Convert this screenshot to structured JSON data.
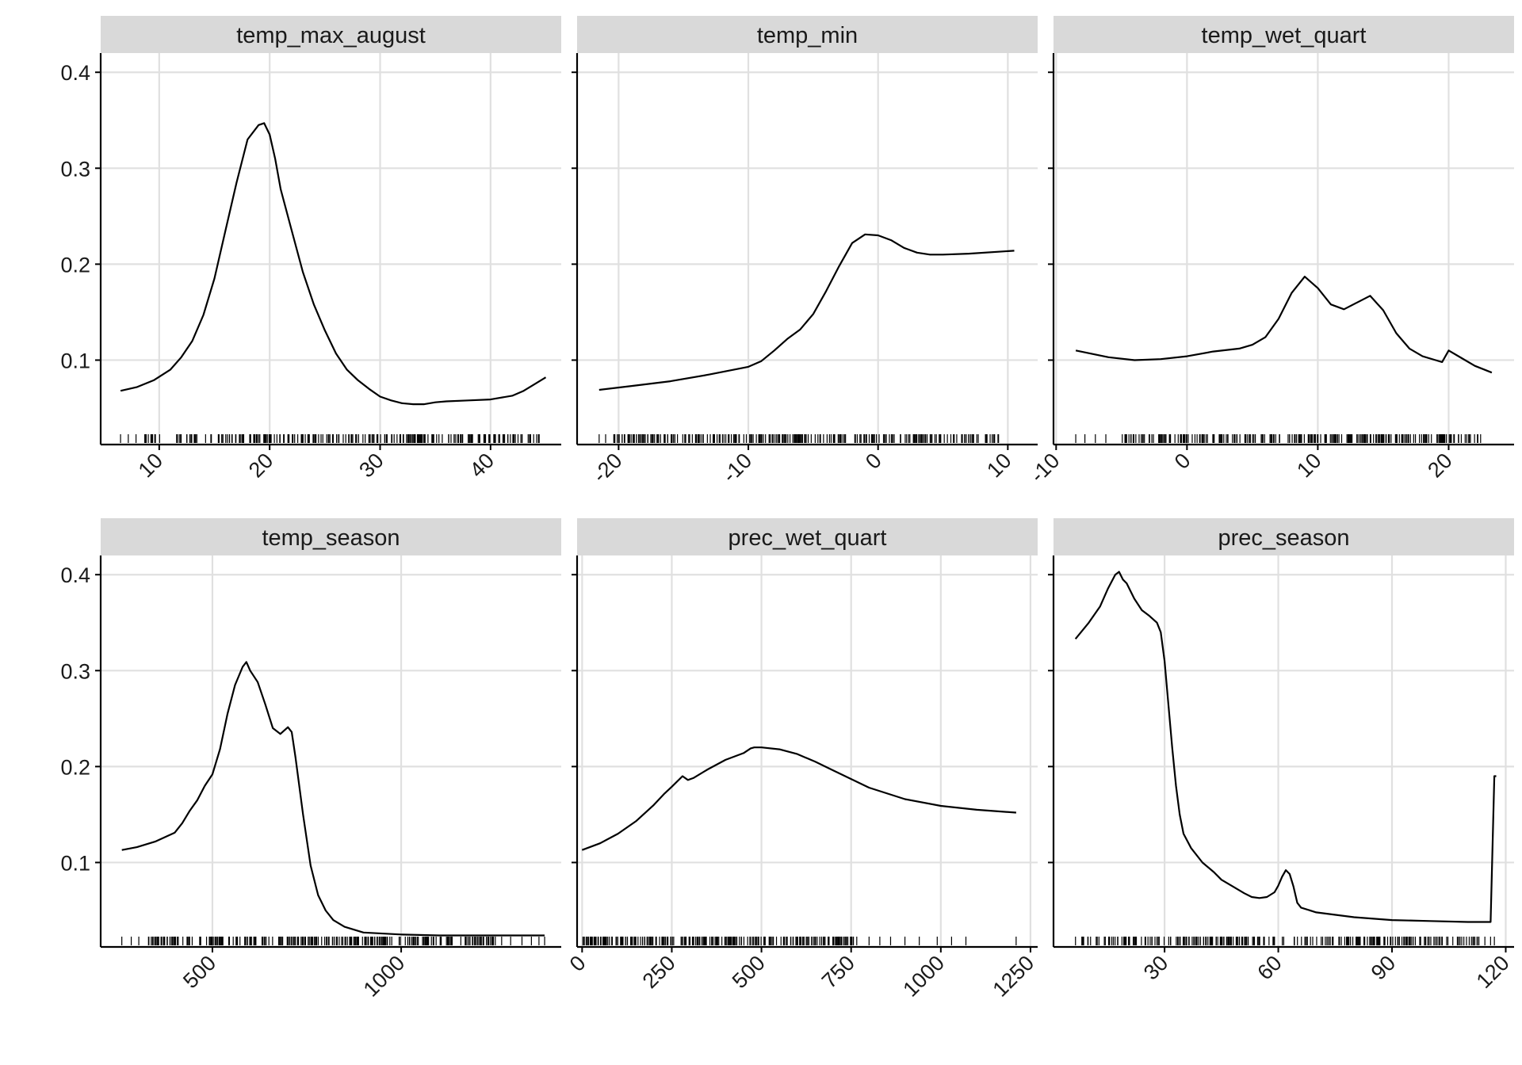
{
  "chart_data": [
    {
      "type": "line",
      "title": "temp_max_august",
      "xlim": [
        4.7,
        46.4
      ],
      "ylim": [
        0.012,
        0.42
      ],
      "xticks": [
        10,
        20,
        30,
        40
      ],
      "xtick_labels": [
        "10",
        "20",
        "30",
        "40"
      ],
      "yticks": [
        0.1,
        0.2,
        0.3,
        0.4
      ],
      "ytick_labels": [
        "0.1",
        "0.2",
        "0.3",
        "0.4"
      ],
      "x": [
        6.5,
        8,
        9.5,
        11,
        12,
        13,
        14,
        15,
        16,
        17,
        18,
        19,
        19.5,
        20,
        20.5,
        21,
        22,
        23,
        24,
        25,
        26,
        27,
        28,
        29,
        30,
        31,
        32,
        33,
        34,
        35,
        36,
        38,
        40,
        42,
        43,
        44,
        45
      ],
      "y": [
        0.068,
        0.072,
        0.079,
        0.09,
        0.103,
        0.12,
        0.147,
        0.185,
        0.235,
        0.285,
        0.33,
        0.345,
        0.347,
        0.335,
        0.31,
        0.278,
        0.235,
        0.192,
        0.158,
        0.131,
        0.107,
        0.09,
        0.079,
        0.07,
        0.062,
        0.058,
        0.055,
        0.054,
        0.054,
        0.056,
        0.057,
        0.058,
        0.059,
        0.063,
        0.068,
        0.075,
        0.082
      ],
      "rug": {
        "min": 6.5,
        "max": 45,
        "dense_min": 8.5,
        "dense_max": 44.5,
        "sparse": [
          6.5,
          7.2,
          7.9
        ]
      },
      "grid": true
    },
    {
      "type": "line",
      "title": "temp_min",
      "xlim": [
        -23.2,
        12.3
      ],
      "ylim": [
        0.012,
        0.42
      ],
      "xticks": [
        -20,
        -10,
        0,
        10
      ],
      "xtick_labels": [
        "-20",
        "-10",
        "0",
        "10"
      ],
      "yticks": [
        0.1,
        0.2,
        0.3,
        0.4
      ],
      "ytick_labels": [
        "0.1",
        "0.2",
        "0.3",
        "0.4"
      ],
      "x": [
        -21.5,
        -19,
        -16,
        -13,
        -10,
        -9,
        -8,
        -7,
        -6,
        -5,
        -4,
        -3,
        -2,
        -1,
        0,
        1,
        2,
        3,
        4,
        5,
        7,
        10.5
      ],
      "y": [
        0.069,
        0.073,
        0.078,
        0.085,
        0.093,
        0.099,
        0.11,
        0.122,
        0.132,
        0.148,
        0.172,
        0.198,
        0.222,
        0.231,
        0.23,
        0.225,
        0.217,
        0.212,
        0.21,
        0.21,
        0.211,
        0.214
      ],
      "rug": {
        "min": -21.5,
        "max": 10.5,
        "dense_min": -20.5,
        "dense_max": 9.5,
        "sparse": [
          -21.5,
          -21.0
        ]
      },
      "grid": true
    },
    {
      "type": "line",
      "title": "temp_wet_quart",
      "xlim": [
        -10.2,
        25
      ],
      "ylim": [
        0.012,
        0.42
      ],
      "xticks": [
        -10,
        0,
        10,
        20
      ],
      "xtick_labels": [
        "-10",
        "0",
        "10",
        "20"
      ],
      "yticks": [
        0.1,
        0.2,
        0.3,
        0.4
      ],
      "ytick_labels": [
        "0.1",
        "0.2",
        "0.3",
        "0.4"
      ],
      "x": [
        -8.5,
        -6,
        -4,
        -2,
        0,
        2,
        4,
        5,
        6,
        7,
        8,
        9,
        10,
        11,
        12,
        13,
        14,
        15,
        16,
        17,
        18,
        19,
        19.5,
        20,
        21,
        22,
        23.3
      ],
      "y": [
        0.11,
        0.103,
        0.1,
        0.101,
        0.104,
        0.109,
        0.112,
        0.116,
        0.124,
        0.143,
        0.17,
        0.187,
        0.175,
        0.158,
        0.153,
        0.16,
        0.167,
        0.152,
        0.128,
        0.112,
        0.104,
        0.1,
        0.098,
        0.11,
        0.102,
        0.094,
        0.087
      ],
      "rug": {
        "min": -8.5,
        "max": 23,
        "dense_min": -5,
        "dense_max": 22.5,
        "sparse": [
          -8.5,
          -7.8,
          -7.0,
          -6.2
        ]
      },
      "grid": true
    },
    {
      "type": "line",
      "title": "temp_season",
      "xlim": [
        204,
        1424
      ],
      "ylim": [
        0.012,
        0.42
      ],
      "xticks": [
        500,
        1000
      ],
      "xtick_labels": [
        "500",
        "1000"
      ],
      "yticks": [
        0.1,
        0.2,
        0.3,
        0.4
      ],
      "ytick_labels": [
        "0.1",
        "0.2",
        "0.3",
        "0.4"
      ],
      "x": [
        260,
        300,
        350,
        400,
        420,
        440,
        460,
        480,
        500,
        520,
        540,
        560,
        580,
        590,
        600,
        620,
        640,
        660,
        680,
        700,
        710,
        720,
        740,
        760,
        780,
        800,
        820,
        850,
        900,
        1000,
        1100,
        1200,
        1300,
        1380
      ],
      "y": [
        0.113,
        0.116,
        0.122,
        0.131,
        0.141,
        0.154,
        0.165,
        0.18,
        0.192,
        0.218,
        0.255,
        0.285,
        0.304,
        0.309,
        0.3,
        0.288,
        0.265,
        0.24,
        0.234,
        0.241,
        0.236,
        0.21,
        0.15,
        0.097,
        0.066,
        0.05,
        0.04,
        0.033,
        0.027,
        0.025,
        0.024,
        0.024,
        0.024,
        0.024
      ],
      "rug": {
        "min": 260,
        "max": 1380,
        "dense_min": 330,
        "dense_max": 1270,
        "sparse": [
          260,
          285,
          305,
          1290,
          1320,
          1345,
          1365,
          1380
        ]
      },
      "grid": true
    },
    {
      "type": "line",
      "title": "prec_wet_quart",
      "xlim": [
        -14,
        1270
      ],
      "ylim": [
        0.012,
        0.42
      ],
      "xticks": [
        0,
        250,
        500,
        750,
        1000,
        1250
      ],
      "xtick_labels": [
        "0",
        "250",
        "500",
        "750",
        "1000",
        "1250"
      ],
      "yticks": [
        0.1,
        0.2,
        0.3,
        0.4
      ],
      "ytick_labels": [
        "0.1",
        "0.2",
        "0.3",
        "0.4"
      ],
      "x": [
        0,
        50,
        100,
        150,
        200,
        230,
        250,
        280,
        295,
        310,
        350,
        400,
        450,
        470,
        480,
        500,
        550,
        600,
        650,
        700,
        800,
        900,
        1000,
        1100,
        1210
      ],
      "y": [
        0.113,
        0.12,
        0.13,
        0.143,
        0.16,
        0.172,
        0.179,
        0.19,
        0.186,
        0.188,
        0.197,
        0.207,
        0.214,
        0.219,
        0.22,
        0.22,
        0.218,
        0.213,
        0.205,
        0.196,
        0.178,
        0.166,
        0.159,
        0.155,
        0.152
      ],
      "rug": {
        "min": 0,
        "max": 1210,
        "dense_min": 0,
        "dense_max": 780,
        "sparse": [
          800,
          830,
          860,
          900,
          940,
          990,
          1030,
          1070,
          1210
        ]
      },
      "grid": true
    },
    {
      "type": "line",
      "title": "prec_season",
      "xlim": [
        0.7,
        122.2
      ],
      "ylim": [
        0.012,
        0.42
      ],
      "xticks": [
        30,
        60,
        90,
        120
      ],
      "xtick_labels": [
        "30",
        "60",
        "90",
        "120"
      ],
      "yticks": [
        0.1,
        0.2,
        0.3,
        0.4
      ],
      "ytick_labels": [
        "0.1",
        "0.2",
        "0.3",
        "0.4"
      ],
      "x": [
        6.5,
        10,
        13,
        15,
        17,
        18,
        19,
        20,
        22,
        24,
        26,
        28,
        29,
        30,
        31,
        32,
        33,
        34,
        35,
        37,
        40,
        43,
        45,
        48,
        51,
        53,
        55,
        57,
        59,
        60,
        61,
        62,
        63,
        64,
        65,
        66,
        70,
        80,
        90,
        100,
        110,
        116,
        117,
        117.5
      ],
      "y": [
        0.333,
        0.35,
        0.367,
        0.385,
        0.4,
        0.403,
        0.395,
        0.391,
        0.375,
        0.363,
        0.357,
        0.35,
        0.34,
        0.31,
        0.265,
        0.22,
        0.18,
        0.15,
        0.13,
        0.115,
        0.1,
        0.09,
        0.082,
        0.075,
        0.068,
        0.064,
        0.063,
        0.064,
        0.069,
        0.076,
        0.085,
        0.092,
        0.088,
        0.075,
        0.058,
        0.053,
        0.048,
        0.043,
        0.04,
        0.039,
        0.038,
        0.038,
        0.19,
        0.19
      ],
      "rug": {
        "min": 6.5,
        "max": 117,
        "dense_min": 8,
        "dense_max": 113,
        "sparse": [
          6.5,
          114.5,
          116,
          117
        ]
      },
      "grid": true
    }
  ]
}
